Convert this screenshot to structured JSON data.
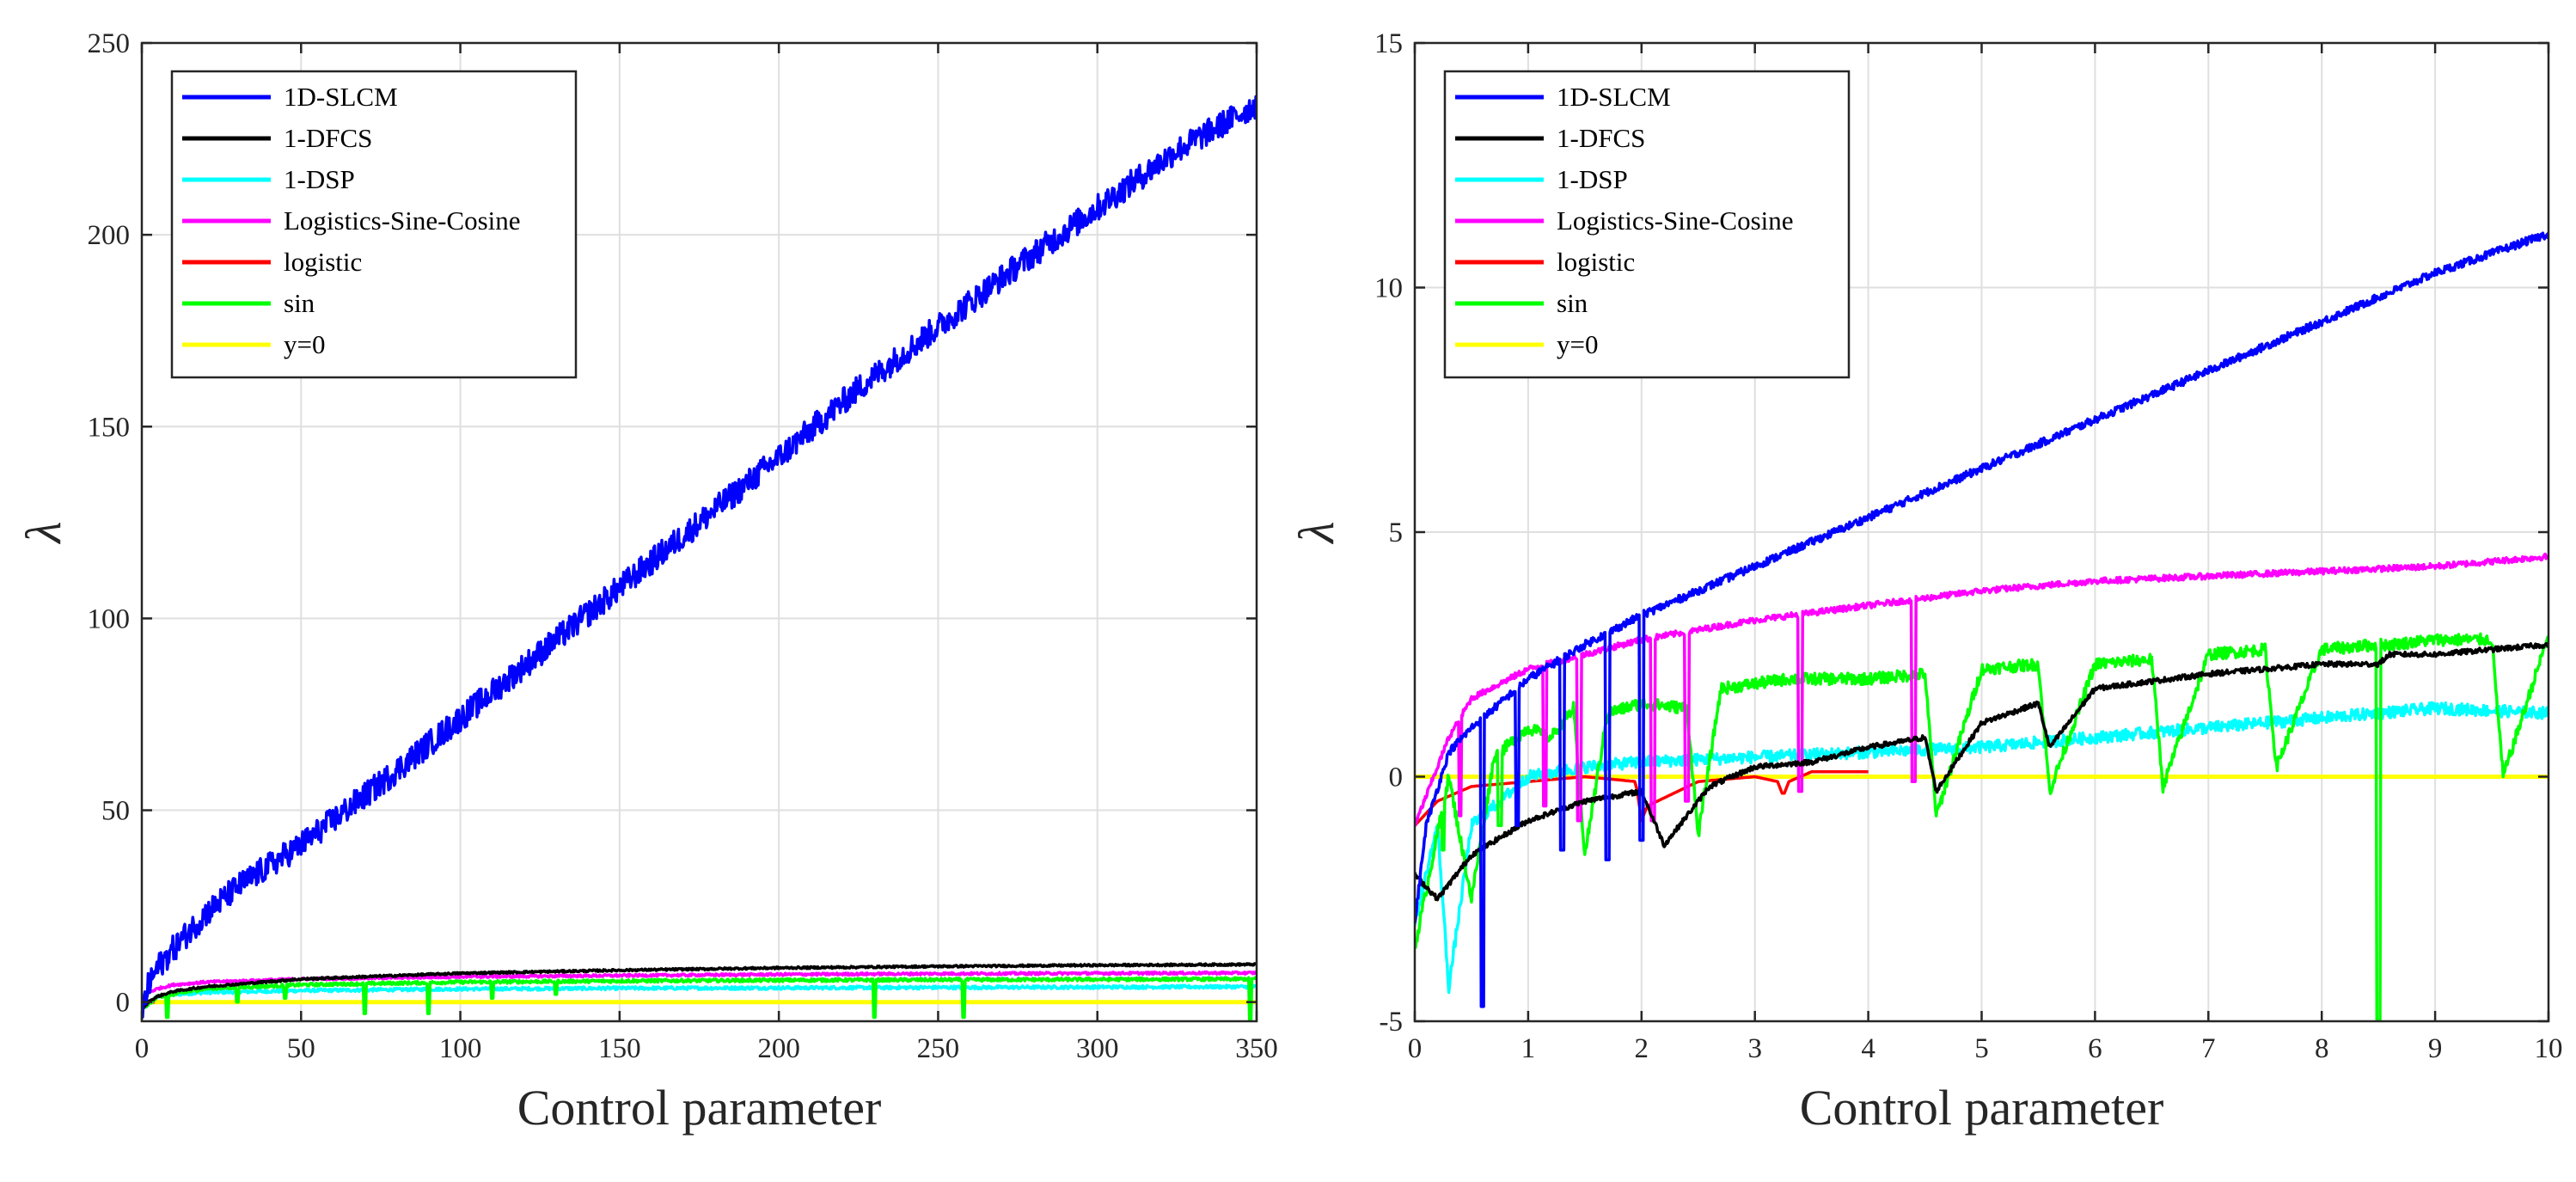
{
  "chart_data": [
    {
      "type": "line",
      "xlabel": "Control parameter",
      "ylabel": "λ",
      "xlim": [
        0,
        350
      ],
      "ylim": [
        -5,
        250
      ],
      "xticks": [
        0,
        50,
        100,
        150,
        200,
        250,
        300,
        350
      ],
      "yticks": [
        0,
        50,
        100,
        150,
        200,
        250
      ],
      "xtick_labels": [
        "0",
        "50",
        "100",
        "150",
        "200",
        "250",
        "300",
        "350"
      ],
      "ytick_labels": [
        "0",
        "50",
        "100",
        "150",
        "200",
        "250"
      ],
      "grid": true,
      "legend_position": "top-left",
      "series": [
        {
          "name": "1D-SLCM",
          "color": "#0000FF",
          "x": [
            0,
            2,
            5,
            10,
            20,
            30,
            50,
            75,
            100,
            125,
            150,
            175,
            200,
            225,
            250,
            275,
            300,
            325,
            350
          ],
          "y": [
            -3,
            4,
            9,
            14,
            23,
            30,
            41,
            57,
            74,
            91,
            108,
            125,
            142,
            160,
            176,
            192,
            207,
            222,
            234
          ],
          "noise": 3.5
        },
        {
          "name": "1-DFCS",
          "color": "#000000",
          "x": [
            0,
            2,
            5,
            10,
            20,
            50,
            100,
            150,
            200,
            250,
            300,
            350
          ],
          "y": [
            -2,
            0,
            1.5,
            2.8,
            4,
            6,
            7.5,
            8.3,
            8.9,
            9.3,
            9.6,
            9.8
          ],
          "noise": 0.25
        },
        {
          "name": "1-DSP",
          "color": "#00FFFF",
          "x": [
            0,
            5,
            10,
            20,
            50,
            100,
            150,
            200,
            250,
            300,
            350
          ],
          "y": [
            -2,
            1.5,
            2,
            2.5,
            3,
            3.4,
            3.6,
            3.7,
            3.8,
            3.9,
            4.0
          ],
          "noise": 0.4
        },
        {
          "name": "Logistics-Sine-Cosine",
          "color": "#FF00FF",
          "x": [
            0,
            2,
            5,
            10,
            20,
            50,
            100,
            150,
            200,
            250,
            300,
            350
          ],
          "y": [
            0,
            2.5,
            3.5,
            4.5,
            5.2,
            6,
            6.6,
            6.9,
            7.2,
            7.4,
            7.5,
            7.6
          ],
          "noise": 0.3
        },
        {
          "name": "logistic",
          "color": "#FF0000",
          "x": [
            0,
            1,
            2,
            4
          ],
          "y": [
            -1,
            -0.3,
            0,
            0
          ]
        },
        {
          "name": "sin",
          "color": "#00FF00",
          "x": [
            0,
            5,
            10,
            20,
            50,
            100,
            150,
            200,
            250,
            300,
            350
          ],
          "y": [
            -2,
            1.5,
            2,
            3.5,
            4.5,
            5.2,
            5.5,
            5.7,
            5.8,
            5.9,
            6.0
          ],
          "noise": 0.4,
          "dips": [
            [
              8,
              -4
            ],
            [
              30,
              0
            ],
            [
              45,
              1
            ],
            [
              70,
              -3
            ],
            [
              90,
              -3
            ],
            [
              110,
              1
            ],
            [
              130,
              2
            ],
            [
              230,
              -4
            ],
            [
              258,
              -4
            ],
            [
              348,
              -5
            ]
          ]
        },
        {
          "name": "y=0",
          "color": "#FFFF00",
          "x": [
            0,
            350
          ],
          "y": [
            0,
            0
          ]
        }
      ]
    },
    {
      "type": "line",
      "xlabel": "Control parameter",
      "ylabel": "λ",
      "xlim": [
        0,
        10
      ],
      "ylim": [
        -5,
        15
      ],
      "xticks": [
        0,
        1,
        2,
        3,
        4,
        5,
        6,
        7,
        8,
        9,
        10
      ],
      "yticks": [
        -5,
        0,
        5,
        10,
        15
      ],
      "xtick_labels": [
        "0",
        "1",
        "2",
        "3",
        "4",
        "5",
        "6",
        "7",
        "8",
        "9",
        "10"
      ],
      "ytick_labels": [
        "-5",
        "0",
        "5",
        "10",
        "15"
      ],
      "grid": true,
      "legend_position": "top-left",
      "series": [
        {
          "name": "1D-SLCM",
          "color": "#0000FF",
          "x": [
            0,
            0.1,
            0.3,
            0.5,
            0.8,
            1,
            1.5,
            2,
            2.5,
            3,
            3.5,
            4,
            4.5,
            5,
            5.5,
            6,
            6.5,
            7,
            7.5,
            8,
            8.5,
            9,
            9.5,
            10
          ],
          "y": [
            -3,
            -1,
            0.5,
            1,
            1.6,
            2,
            2.7,
            3.3,
            3.8,
            4.3,
            4.8,
            5.3,
            5.8,
            6.3,
            6.8,
            7.3,
            7.8,
            8.3,
            8.8,
            9.3,
            9.8,
            10.3,
            10.7,
            11.1
          ],
          "noise": 0.08,
          "dips": [
            [
              0.6,
              -4.7
            ],
            [
              0.9,
              -1
            ],
            [
              1.3,
              -1.5
            ],
            [
              1.7,
              -1.7
            ],
            [
              2.0,
              -1.3
            ]
          ]
        },
        {
          "name": "1-DFCS",
          "color": "#000000",
          "x": [
            0,
            0.2,
            0.5,
            1,
            1.5,
            2,
            2.2,
            2.6,
            3,
            3.5,
            4,
            4.5,
            4.6,
            5,
            5.5,
            5.6,
            6,
            7,
            8,
            8.5,
            8.6,
            9,
            10
          ],
          "y": [
            -2,
            -2.5,
            -1.6,
            -0.9,
            -0.5,
            -0.3,
            -1.4,
            -0.2,
            0.2,
            0.3,
            0.6,
            0.8,
            -0.3,
            1.1,
            1.5,
            0.6,
            1.8,
            2.1,
            2.3,
            2.3,
            2.5,
            2.5,
            2.7
          ],
          "noise": 0.05
        },
        {
          "name": "1-DSP",
          "color": "#00FFFF",
          "x": [
            0,
            0.2,
            0.3,
            0.5,
            1,
            1.5,
            2,
            3,
            4,
            5,
            6,
            7,
            8,
            9,
            10
          ],
          "y": [
            -3,
            -1,
            -4.3,
            -1,
            0,
            0.2,
            0.3,
            0.4,
            0.5,
            0.6,
            0.8,
            1.0,
            1.2,
            1.4,
            1.3
          ],
          "noise": 0.12
        },
        {
          "name": "Logistics-Sine-Cosine",
          "color": "#FF00FF",
          "x": [
            0,
            0.3,
            0.5,
            1,
            1.5,
            2,
            2.5,
            3,
            4,
            5,
            6,
            7,
            8,
            9,
            10
          ],
          "y": [
            -1,
            0.8,
            1.6,
            2.2,
            2.5,
            2.8,
            3.0,
            3.2,
            3.5,
            3.8,
            4.0,
            4.1,
            4.2,
            4.3,
            4.5
          ],
          "noise": 0.06,
          "dips": [
            [
              0.4,
              -0.8
            ],
            [
              1.15,
              -0.6
            ],
            [
              1.45,
              -0.9
            ],
            [
              2.1,
              -0.9
            ],
            [
              2.4,
              -0.5
            ],
            [
              3.4,
              -0.3
            ],
            [
              4.4,
              -0.1
            ]
          ]
        },
        {
          "name": "logistic",
          "color": "#FF0000",
          "x": [
            0,
            0.2,
            0.5,
            1,
            1.5,
            1.95,
            2,
            2.05,
            2.5,
            3,
            3.2,
            3.25,
            3.3,
            3.5,
            4
          ],
          "y": [
            -1,
            -0.5,
            -0.2,
            -0.1,
            0,
            -0.1,
            -0.9,
            -0.6,
            -0.1,
            0,
            -0.1,
            -0.4,
            -0.1,
            0.1,
            0.1
          ]
        },
        {
          "name": "sin",
          "color": "#00FF00",
          "x": [
            0,
            0.3,
            0.5,
            0.7,
            1,
            1.2,
            1.4,
            1.5,
            1.7,
            2,
            2.4,
            2.5,
            2.7,
            3,
            3.3,
            3.5,
            4,
            4.5,
            4.6,
            5,
            5.5,
            5.6,
            6,
            6.5,
            6.6,
            7,
            7.5,
            7.6,
            8,
            8.5,
            8.6,
            9,
            9.5,
            9.6,
            10
          ],
          "y": [
            -3.5,
            0,
            -2.5,
            0.4,
            1.0,
            0.8,
            1.4,
            -1.6,
            1.3,
            1.5,
            1.4,
            -1.2,
            1.8,
            1.9,
            2.0,
            2.0,
            2.0,
            2.1,
            -0.8,
            2.2,
            2.3,
            -0.3,
            2.3,
            2.4,
            -0.2,
            2.5,
            2.6,
            0.2,
            2.6,
            2.7,
            2.7,
            2.8,
            2.8,
            0,
            2.9
          ],
          "noise": 0.12,
          "dips": [
            [
              8.5,
              -5
            ],
            [
              0.25,
              -1.5
            ],
            [
              0.75,
              -1
            ]
          ]
        },
        {
          "name": "y=0",
          "color": "#FFFF00",
          "x": [
            0,
            10
          ],
          "y": [
            0,
            0
          ]
        }
      ]
    }
  ]
}
